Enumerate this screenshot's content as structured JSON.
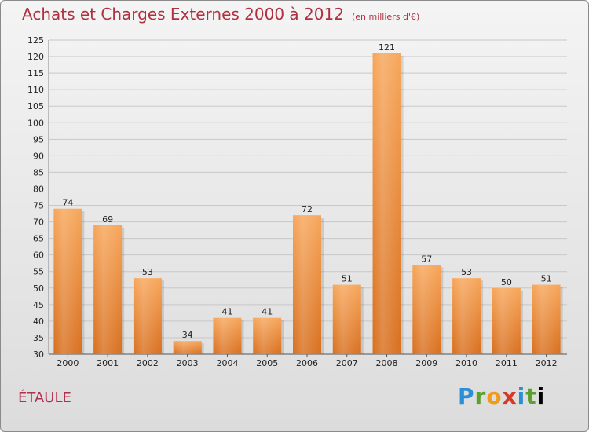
{
  "header": {
    "title": "Achats et Charges Externes 2000 à 2012",
    "subtitle": "(en milliers d'€)"
  },
  "location": "ÉTAULE",
  "logo_text": "Proxiti",
  "colors": {
    "title": "#b03040",
    "bar_top": "#f7a65a",
    "bar_bottom": "#d86f1e",
    "grid": "#c8c8c8"
  },
  "chart_data": {
    "type": "bar",
    "title": "Achats et Charges Externes 2000 à 2012",
    "subtitle": "(en milliers d'€)",
    "categories": [
      "2000",
      "2001",
      "2002",
      "2003",
      "2004",
      "2005",
      "2006",
      "2007",
      "2008",
      "2009",
      "2010",
      "2011",
      "2012"
    ],
    "values": [
      74,
      69,
      53,
      34,
      41,
      41,
      72,
      51,
      121,
      57,
      53,
      50,
      51
    ],
    "ylim": [
      30,
      125
    ],
    "yticks": [
      30,
      35,
      40,
      45,
      50,
      55,
      60,
      65,
      70,
      75,
      80,
      85,
      90,
      95,
      100,
      105,
      110,
      115,
      120,
      125
    ],
    "grid": true,
    "legend": "none"
  }
}
